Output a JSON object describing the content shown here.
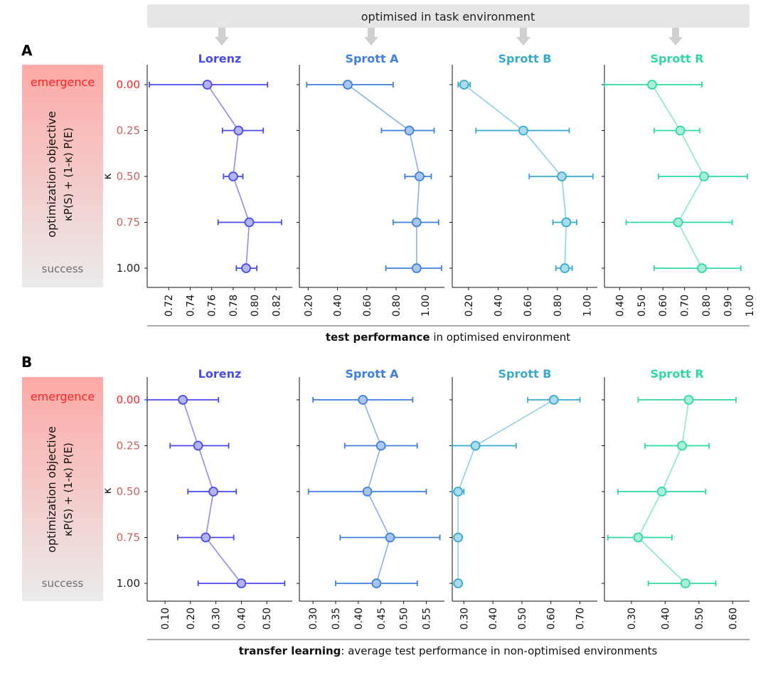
{
  "banner": {
    "text": "optimised in task environment"
  },
  "colors": {
    "banner": "#e6e6e6",
    "arrow": "#cfcfcf",
    "emergence": "#ff2020",
    "success": "#6f6f6f",
    "series": [
      "#4a4af2",
      "#3f7fe0",
      "#39a9cc",
      "#2ed9a2"
    ],
    "fills": [
      "#b4b4f4",
      "#a9c6f1",
      "#a9dcee",
      "#a9f0d9"
    ],
    "lines": [
      "#8c8cf4",
      "#8ab0ee",
      "#8fd0e6",
      "#86eac9"
    ]
  },
  "side_panel": {
    "emergence": "emergence",
    "success": "success",
    "line1": "optimization objective",
    "line2": "κP(S) + (1-κ) P(E)"
  },
  "kappa_label": "κ",
  "kappa_ticks": [
    "0.00",
    "0.25",
    "0.50",
    "0.75",
    "1.00"
  ],
  "chart_data": [
    {
      "id": "A",
      "label": "A",
      "xlabel_bold": "test performance",
      "xlabel_rest": " in optimised environment",
      "type": "scatter",
      "panels": [
        {
          "title": "Lorenz",
          "xlim": [
            0.7,
            0.835
          ],
          "ticks": [
            0.72,
            0.74,
            0.76,
            0.78,
            0.8,
            0.82
          ],
          "tick_labels": [
            "0.72",
            "0.74",
            "0.76",
            "0.78",
            "0.80",
            "0.82"
          ],
          "kappa": [
            0,
            0.25,
            0.5,
            0.75,
            1.0
          ],
          "values": [
            0.756,
            0.785,
            0.78,
            0.795,
            0.792
          ],
          "err_low": [
            0.702,
            0.77,
            0.771,
            0.766,
            0.783
          ],
          "err_high": [
            0.812,
            0.808,
            0.789,
            0.825,
            0.802
          ]
        },
        {
          "title": "Sprott A",
          "xlim": [
            0.14,
            1.13
          ],
          "ticks": [
            0.2,
            0.4,
            0.6,
            0.8,
            1.0
          ],
          "tick_labels": [
            "0.20",
            "0.40",
            "0.60",
            "0.80",
            "1.00"
          ],
          "kappa": [
            0,
            0.25,
            0.5,
            0.75,
            1.0
          ],
          "values": [
            0.47,
            0.89,
            0.96,
            0.94,
            0.94
          ],
          "err_low": [
            0.19,
            0.7,
            0.86,
            0.78,
            0.73
          ],
          "err_high": [
            0.78,
            1.06,
            1.04,
            1.09,
            1.11
          ]
        },
        {
          "title": "Sprott B",
          "xlim": [
            0.09,
            1.07
          ],
          "ticks": [
            0.2,
            0.4,
            0.6,
            0.8,
            1.0
          ],
          "tick_labels": [
            "0.20",
            "0.40",
            "0.60",
            "0.80",
            "1.00"
          ],
          "kappa": [
            0,
            0.25,
            0.5,
            0.75,
            1.0
          ],
          "values": [
            0.17,
            0.57,
            0.83,
            0.86,
            0.85
          ],
          "err_low": [
            0.13,
            0.25,
            0.61,
            0.77,
            0.79
          ],
          "err_high": [
            0.21,
            0.88,
            1.04,
            0.93,
            0.9
          ]
        },
        {
          "title": "Sprott R",
          "xlim": [
            0.33,
            1.0
          ],
          "ticks": [
            0.4,
            0.5,
            0.6,
            0.7,
            0.8,
            0.9,
            1.0
          ],
          "tick_labels": [
            "0.40",
            "0.50",
            "0.60",
            "0.70",
            "0.80",
            "0.90",
            "1.00"
          ],
          "kappa": [
            0,
            0.25,
            0.5,
            0.75,
            1.0
          ],
          "values": [
            0.55,
            0.68,
            0.79,
            0.67,
            0.78
          ],
          "err_low": [
            0.33,
            0.56,
            0.58,
            0.43,
            0.56
          ],
          "err_high": [
            0.78,
            0.77,
            0.99,
            0.92,
            0.96
          ]
        }
      ]
    },
    {
      "id": "B",
      "label": "B",
      "xlabel_bold": "transfer learning",
      "xlabel_rest": ": average test performance in non-optimised environments",
      "type": "scatter",
      "panels": [
        {
          "title": "Lorenz",
          "xlim": [
            0.03,
            0.6
          ],
          "ticks": [
            0.1,
            0.2,
            0.3,
            0.4,
            0.5
          ],
          "tick_labels": [
            "0.10",
            "0.20",
            "0.30",
            "0.40",
            "0.50"
          ],
          "kappa": [
            0,
            0.25,
            0.5,
            0.75,
            1.0
          ],
          "values": [
            0.17,
            0.23,
            0.29,
            0.26,
            0.4
          ],
          "err_low": [
            0.03,
            0.12,
            0.19,
            0.15,
            0.23
          ],
          "err_high": [
            0.31,
            0.35,
            0.38,
            0.37,
            0.57
          ]
        },
        {
          "title": "Sprott A",
          "xlim": [
            0.27,
            0.59
          ],
          "ticks": [
            0.3,
            0.35,
            0.4,
            0.45,
            0.5,
            0.55
          ],
          "tick_labels": [
            "0.30",
            "0.35",
            "0.40",
            "0.45",
            "0.50",
            "0.55"
          ],
          "kappa": [
            0,
            0.25,
            0.5,
            0.75,
            1.0
          ],
          "values": [
            0.41,
            0.45,
            0.42,
            0.47,
            0.44
          ],
          "err_low": [
            0.3,
            0.37,
            0.29,
            0.36,
            0.35
          ],
          "err_high": [
            0.52,
            0.53,
            0.55,
            0.58,
            0.53
          ]
        },
        {
          "title": "Sprott B",
          "xlim": [
            0.26,
            0.76
          ],
          "ticks": [
            0.3,
            0.4,
            0.5,
            0.6,
            0.7
          ],
          "tick_labels": [
            "0.30",
            "0.40",
            "0.50",
            "0.60",
            "0.70"
          ],
          "kappa": [
            0,
            0.25,
            0.5,
            0.75,
            1.0
          ],
          "values": [
            0.61,
            0.34,
            0.28,
            0.28,
            0.28
          ],
          "err_low": [
            0.52,
            0.26,
            0.26,
            0.27,
            0.27
          ],
          "err_high": [
            0.7,
            0.48,
            0.3,
            0.29,
            0.29
          ]
        },
        {
          "title": "Sprott R",
          "xlim": [
            0.22,
            0.65
          ],
          "ticks": [
            0.3,
            0.4,
            0.5,
            0.6
          ],
          "tick_labels": [
            "0.30",
            "0.40",
            "0.50",
            "0.60"
          ],
          "kappa": [
            0,
            0.25,
            0.5,
            0.75,
            1.0
          ],
          "values": [
            0.47,
            0.45,
            0.39,
            0.32,
            0.46
          ],
          "err_low": [
            0.32,
            0.34,
            0.26,
            0.23,
            0.35
          ],
          "err_high": [
            0.61,
            0.53,
            0.52,
            0.42,
            0.55
          ]
        }
      ]
    }
  ]
}
